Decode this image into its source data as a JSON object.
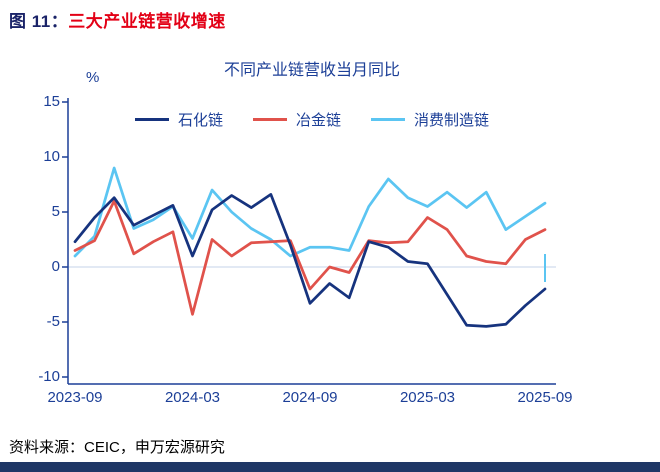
{
  "header": {
    "figure_label": "图 11：",
    "figure_title": "三大产业链营收增速"
  },
  "chart_data": {
    "type": "line",
    "title": "不同产业链营收当月同比",
    "unit_label": "%",
    "xlabel": "",
    "ylabel": "%",
    "ylim": [
      -10,
      15
    ],
    "grid": "zero-line-only",
    "legend_position": "top",
    "y_ticks": [
      15,
      10,
      5,
      0,
      -5,
      -10
    ],
    "x_tick_labels": [
      "2023-09",
      "2024-03",
      "2024-09",
      "2025-03",
      "2025-09"
    ],
    "x": [
      "2023-09",
      "2023-10",
      "2023-11",
      "2023-12",
      "2024-01",
      "2024-02",
      "2024-03",
      "2024-04",
      "2024-05",
      "2024-06",
      "2024-07",
      "2024-08",
      "2024-09",
      "2024-10",
      "2024-11",
      "2024-12",
      "2025-01",
      "2025-02",
      "2025-03",
      "2025-04",
      "2025-05",
      "2025-06",
      "2025-07",
      "2025-08",
      "2025-09"
    ],
    "series": [
      {
        "name": "石化链",
        "color": "#16337E",
        "values": [
          2.3,
          4.5,
          6.3,
          3.8,
          4.7,
          5.6,
          1.0,
          5.2,
          6.5,
          5.4,
          6.6,
          2.0,
          -3.3,
          -1.5,
          -2.8,
          2.3,
          1.8,
          0.5,
          0.3,
          -2.5,
          -5.3,
          -5.4,
          -5.2,
          -3.5,
          -2.0
        ]
      },
      {
        "name": "冶金链",
        "color": "#E0524B",
        "values": [
          1.5,
          2.4,
          6.0,
          1.2,
          2.3,
          3.2,
          -4.3,
          2.5,
          1.0,
          2.2,
          2.3,
          2.4,
          -2.0,
          0.0,
          -0.5,
          2.4,
          2.2,
          2.3,
          4.5,
          3.4,
          1.0,
          0.5,
          0.3,
          2.5,
          3.4
        ]
      },
      {
        "name": "消费制造链",
        "color": "#5BC5F2",
        "values": [
          1.0,
          2.8,
          9.0,
          3.5,
          4.3,
          5.5,
          2.6,
          7.0,
          5.0,
          3.5,
          2.5,
          1.0,
          1.8,
          1.8,
          1.5,
          5.5,
          8.0,
          6.3,
          5.5,
          6.8,
          5.4,
          6.8,
          3.4,
          4.6,
          5.8
        ]
      }
    ]
  },
  "source": {
    "text": "资料来源：CEIC，申万宏源研究"
  },
  "colors": {
    "header-label": "#1A2368",
    "header-title": "#E30016",
    "axis-text": "#1C3F97",
    "axis-line": "#1C3F97",
    "zero-line": "#C4D3EA",
    "source-text": "#000000",
    "footer-bar": "#1F3766"
  }
}
